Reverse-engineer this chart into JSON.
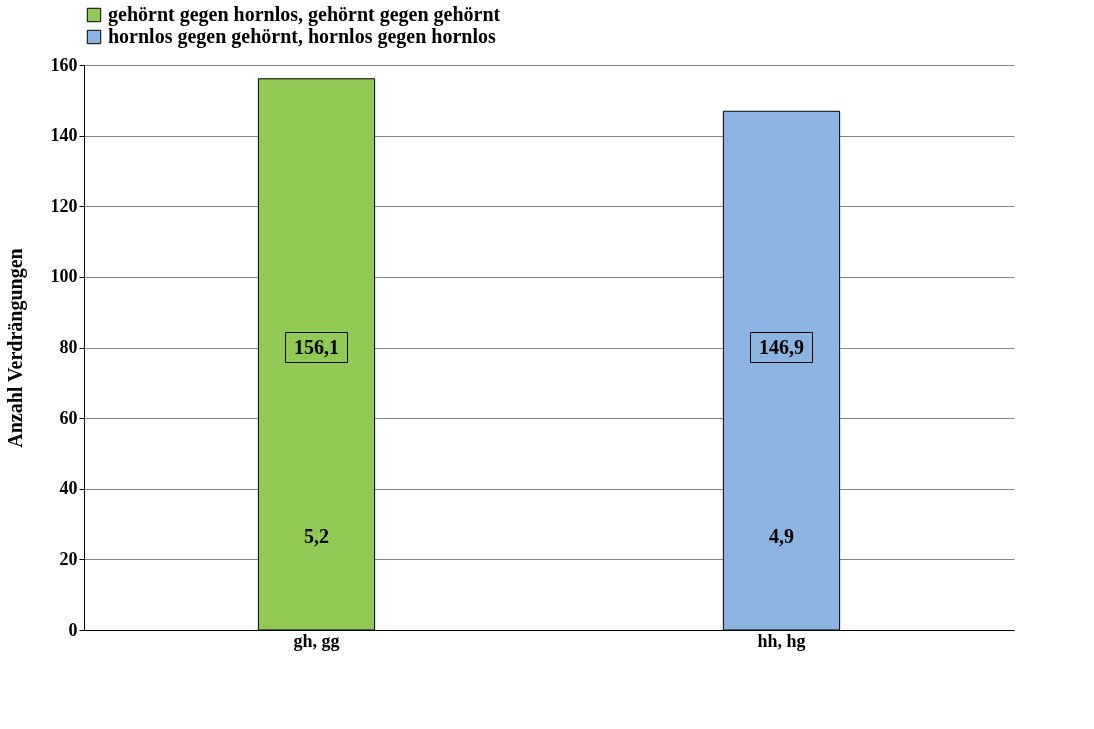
{
  "chart_data": {
    "type": "bar",
    "ylabel": "Anzahl Verdrängungen",
    "categories": [
      "gh, gg",
      "hh, hg"
    ],
    "series": [
      {
        "name": "gehörnt gegen hornlos, gehörnt gegen gehörnt",
        "color": "#92c954",
        "values": [
          156.1,
          null
        ],
        "value_labels": [
          "156,1",
          null
        ]
      },
      {
        "name": "hornlos gegen gehörnt, hornlos gegen hornlos",
        "color": "#8db3e0",
        "values": [
          null,
          146.9
        ],
        "value_labels": [
          null,
          "146,9"
        ]
      }
    ],
    "annotations": [
      "5,2",
      "4,9"
    ],
    "ylim": [
      0,
      160
    ],
    "yticks": [
      0,
      20,
      40,
      60,
      80,
      100,
      120,
      140,
      160
    ],
    "grid": "y",
    "legend": "top"
  }
}
